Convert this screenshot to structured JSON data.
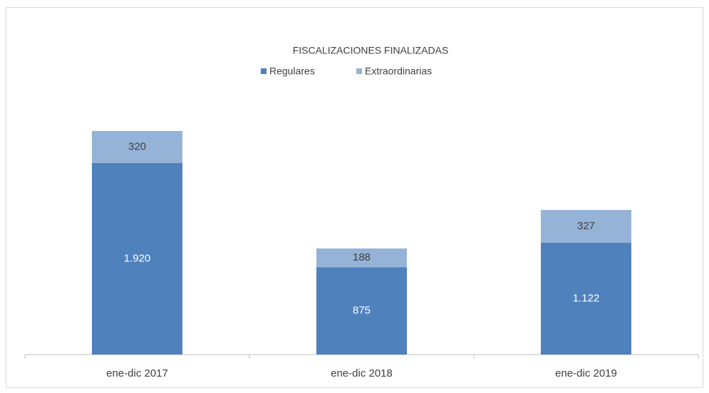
{
  "chart_data": {
    "type": "stacked_bar",
    "title": "FISCALIZACIONES FINALIZADAS",
    "categories": [
      "ene-dic 2017",
      "ene-dic 2018",
      "ene-dic 2019"
    ],
    "series": [
      {
        "name": "Regulares",
        "color": "#4f81bd",
        "values": [
          1920,
          875,
          1122
        ],
        "value_labels": [
          "1.920",
          "875",
          "1.122"
        ]
      },
      {
        "name": "Extraordinarias",
        "color": "#95b3d7",
        "values": [
          320,
          188,
          327
        ],
        "value_labels": [
          "320",
          "188",
          "327"
        ]
      }
    ]
  }
}
